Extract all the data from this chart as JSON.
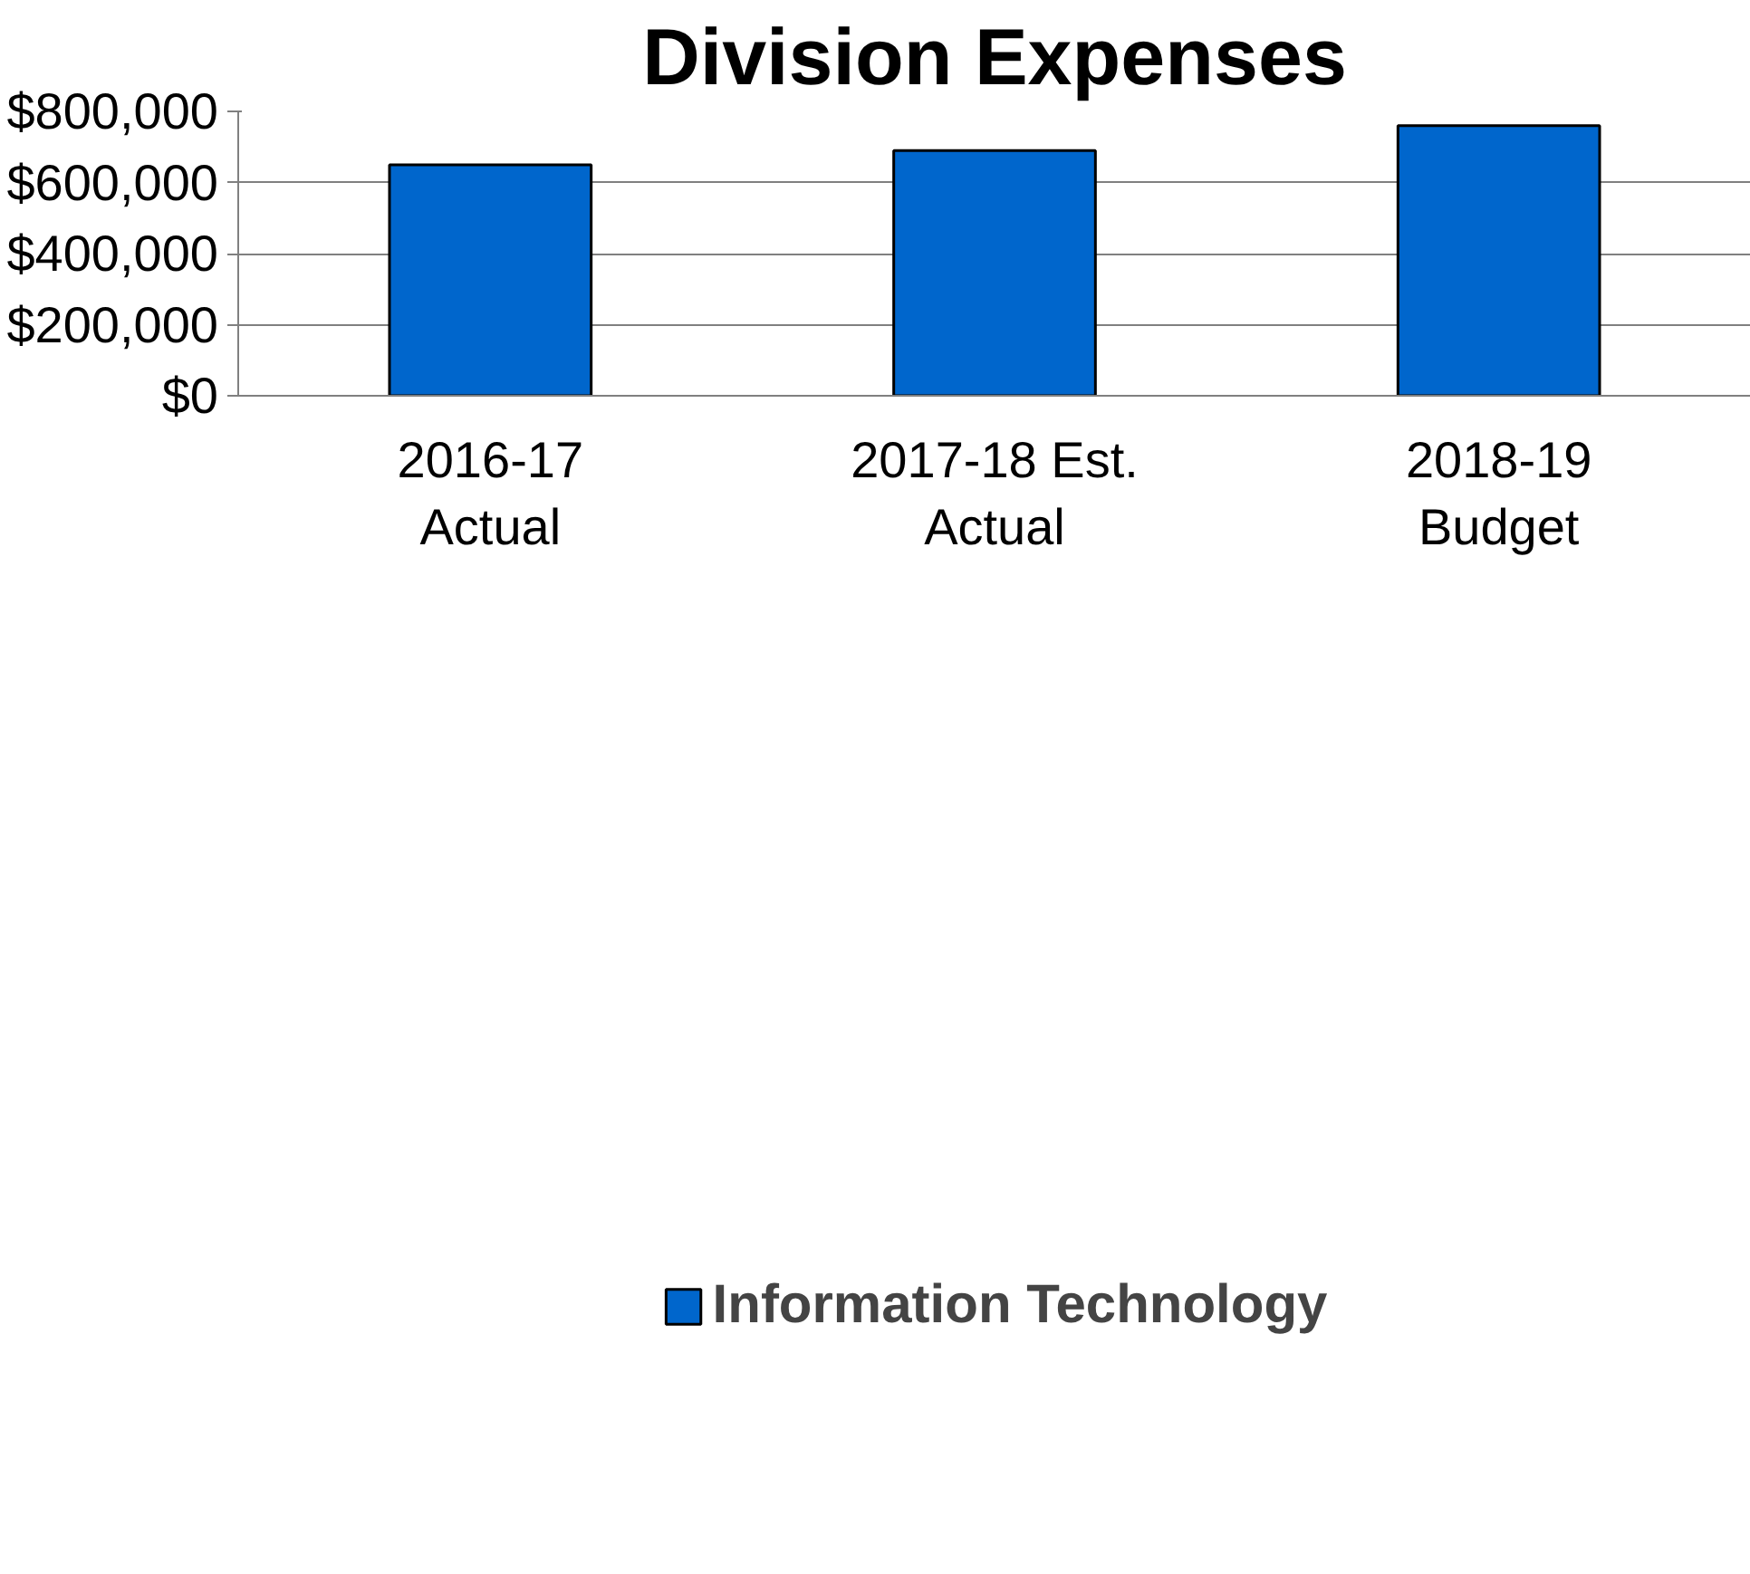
{
  "chart_data": {
    "type": "bar",
    "title": "Division Expenses",
    "categories": [
      "2016-17\nActual",
      "2017-18 Est.\nActual",
      "2018-19\nBudget"
    ],
    "series": [
      {
        "name": "Information Technology",
        "color": "#0066cc",
        "values": [
          650000,
          690000,
          760000
        ]
      }
    ],
    "ylim": [
      0,
      800000
    ],
    "yticks": [
      {
        "value": 0,
        "label": "$0"
      },
      {
        "value": 200000,
        "label": "$200,000"
      },
      {
        "value": 400000,
        "label": "$400,000"
      },
      {
        "value": 600000,
        "label": "$600,000"
      },
      {
        "value": 800000,
        "label": "$800,000"
      }
    ],
    "grid": "y",
    "legend": "bottom"
  }
}
